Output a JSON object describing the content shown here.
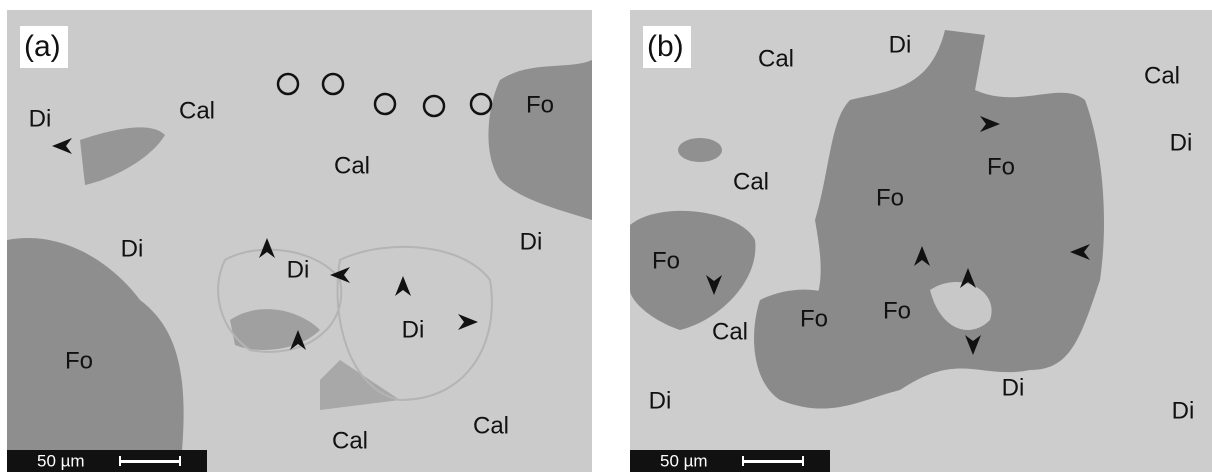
{
  "panels": [
    {
      "label": "(a)",
      "annotations": [
        "Di",
        "Cal",
        "Cal",
        "Fo",
        "Di",
        "Di",
        "Di",
        "Di",
        "Fo",
        "Cal",
        "Cal"
      ],
      "scale_bar": "50 µm"
    },
    {
      "label": "(b)",
      "annotations": [
        "Cal",
        "Di",
        "Cal",
        "Di",
        "Fo",
        "Cal",
        "Fo",
        "Fo",
        "Fo",
        "Fo",
        "Cal",
        "Di",
        "Di",
        "Di"
      ],
      "scale_bar": "50 µm"
    }
  ]
}
